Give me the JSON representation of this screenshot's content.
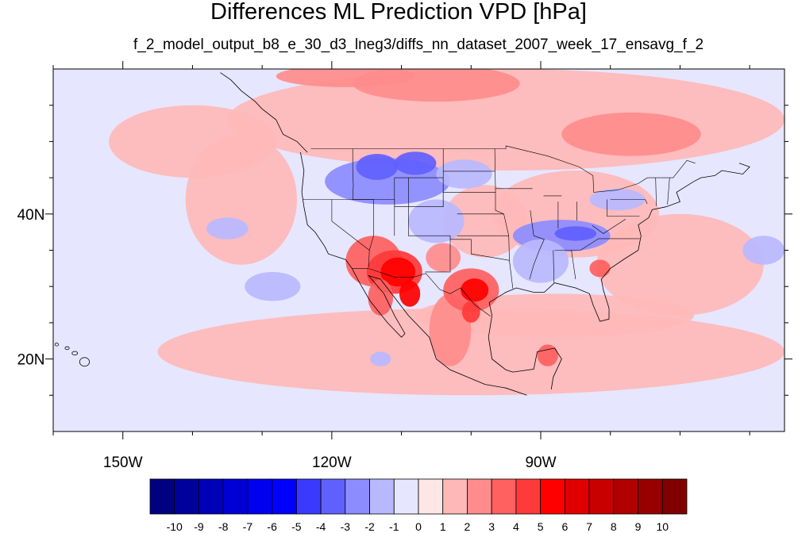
{
  "chart_data": {
    "type": "heatmap",
    "title": "Differences ML Prediction VPD [hPa]",
    "subtitle": "f_2_model_output_b8_e_30_d3_lneg3/diffs_nn_dataset_2007_week_17_ensavg_f_2",
    "lon_range": [
      -160,
      -55
    ],
    "lat_range": [
      10,
      60
    ],
    "x_ticks": [
      {
        "label": "150W",
        "value": -150
      },
      {
        "label": "120W",
        "value": -120
      },
      {
        "label": "90W",
        "value": -90
      }
    ],
    "y_ticks": [
      {
        "label": "40N",
        "value": 40
      },
      {
        "label": "20N",
        "value": 20
      }
    ],
    "colorbar": {
      "labels": [
        "-10",
        "-9",
        "-8",
        "-7",
        "-6",
        "-5",
        "-4",
        "-3",
        "-2",
        "-1",
        "0",
        "1",
        "2",
        "3",
        "4",
        "5",
        "6",
        "7",
        "8",
        "9",
        "10"
      ],
      "colors": [
        "#000080",
        "#00009c",
        "#0000b8",
        "#0000d4",
        "#0000ee",
        "#0000ff",
        "#3a3aff",
        "#6060ff",
        "#8c8cff",
        "#b8b8ff",
        "#e6e6ff",
        "#ffe6e6",
        "#ffb8b8",
        "#ff8c8c",
        "#ff6060",
        "#ff3a3a",
        "#ff0000",
        "#e00000",
        "#c80000",
        "#b00000",
        "#980000",
        "#800000"
      ]
    },
    "background_value": -1,
    "regions": [
      {
        "name": "pacific-light-positive-north",
        "value": 1,
        "lon": -140,
        "lat": 50,
        "rlon": 12,
        "rlat": 5
      },
      {
        "name": "canada-positive-band",
        "value": 1,
        "lon": -95,
        "lat": 53,
        "rlon": 40,
        "rlat": 7
      },
      {
        "name": "hudson-positive",
        "value": 2,
        "lon": -105,
        "lat": 58,
        "rlon": 12,
        "rlat": 2.5
      },
      {
        "name": "quebec-positive",
        "value": 2,
        "lon": -77,
        "lat": 51,
        "rlon": 10,
        "rlat": 3
      },
      {
        "name": "alaska-positive",
        "value": 2,
        "lon": -118,
        "lat": 59,
        "rlon": 10,
        "rlat": 1.5
      },
      {
        "name": "east-pacific-positive",
        "value": 1,
        "lon": -133,
        "lat": 42,
        "rlon": 8,
        "rlat": 9
      },
      {
        "name": "south-positive-belt",
        "value": 1,
        "lon": -100,
        "lat": 21,
        "rlon": 45,
        "rlat": 6
      },
      {
        "name": "gulf-positive",
        "value": 1,
        "lon": -88,
        "lat": 26,
        "rlon": 20,
        "rlat": 3
      },
      {
        "name": "atlantic-positive",
        "value": 1,
        "lon": -70,
        "lat": 33,
        "rlon": 12,
        "rlat": 7
      },
      {
        "name": "us-east-positive",
        "value": 1,
        "lon": -85,
        "lat": 40,
        "rlon": 12,
        "rlat": 6
      },
      {
        "name": "us-central-positive",
        "value": 1,
        "lon": -98,
        "lat": 39,
        "rlon": 6,
        "rlat": 5
      },
      {
        "name": "northwest-negative",
        "value": -3,
        "lon": -112,
        "lat": 44.5,
        "rlon": 9,
        "rlat": 3.2
      },
      {
        "name": "idaho-negative",
        "value": -4,
        "lon": -113.5,
        "lat": 46.5,
        "rlon": 3,
        "rlat": 1.8
      },
      {
        "name": "montana-negative",
        "value": -4,
        "lon": -108,
        "lat": 47,
        "rlon": 3,
        "rlat": 1.6
      },
      {
        "name": "colorado-negative",
        "value": -2,
        "lon": -105,
        "lat": 39,
        "rlon": 4,
        "rlat": 3
      },
      {
        "name": "dakota-negative",
        "value": -2,
        "lon": -101,
        "lat": 45.5,
        "rlon": 4,
        "rlat": 2
      },
      {
        "name": "kentucky-negative",
        "value": -3,
        "lon": -87,
        "lat": 37,
        "rlon": 7,
        "rlat": 2.2
      },
      {
        "name": "kentucky-core-negative",
        "value": -4,
        "lon": -85,
        "lat": 37.3,
        "rlon": 3,
        "rlat": 1
      },
      {
        "name": "mississippi-negative",
        "value": -2,
        "lon": -90,
        "lat": 33.5,
        "rlon": 4,
        "rlat": 3
      },
      {
        "name": "ny-negative",
        "value": -2,
        "lon": -79,
        "lat": 42,
        "rlon": 4,
        "rlat": 1.5
      },
      {
        "name": "pacific-negative-38n",
        "value": -2,
        "lon": -135,
        "lat": 38,
        "rlon": 3,
        "rlat": 1.5
      },
      {
        "name": "pacific-negative-30n",
        "value": -2,
        "lon": -128.5,
        "lat": 30,
        "rlon": 4,
        "rlat": 2
      },
      {
        "name": "atlantic-negative",
        "value": -2,
        "lon": -58,
        "lat": 35,
        "rlon": 3,
        "rlat": 2
      },
      {
        "name": "pacific-negative-south",
        "value": -2,
        "lon": -113,
        "lat": 20,
        "rlon": 1.5,
        "rlat": 1
      },
      {
        "name": "southwest-positive",
        "value": 3,
        "lon": -114,
        "lat": 33.5,
        "rlon": 4,
        "rlat": 3.5
      },
      {
        "name": "arizona-positive",
        "value": 4,
        "lon": -111,
        "lat": 32,
        "rlon": 4,
        "rlat": 3
      },
      {
        "name": "arizona-core",
        "value": 5,
        "lon": -110.5,
        "lat": 32,
        "rlon": 2.5,
        "rlat": 2
      },
      {
        "name": "sonora-positive",
        "value": 5,
        "lon": -108.8,
        "lat": 29,
        "rlon": 1.5,
        "rlat": 1.8
      },
      {
        "name": "baja-positive",
        "value": 3,
        "lon": -113,
        "lat": 28.5,
        "rlon": 1.8,
        "rlat": 2.5
      },
      {
        "name": "mexico-positive",
        "value": 2,
        "lon": -103,
        "lat": 24,
        "rlon": 3,
        "rlat": 5
      },
      {
        "name": "texas-positive",
        "value": 3,
        "lon": -100,
        "lat": 29.5,
        "rlon": 4,
        "rlat": 3
      },
      {
        "name": "texas-core",
        "value": 5,
        "lon": -99.5,
        "lat": 29.5,
        "rlon": 2,
        "rlat": 1.6
      },
      {
        "name": "coahuila-positive",
        "value": 4,
        "lon": -100,
        "lat": 26.5,
        "rlon": 1.3,
        "rlat": 1.5
      },
      {
        "name": "new-mexico-positive",
        "value": 2,
        "lon": -104,
        "lat": 34,
        "rlon": 2.5,
        "rlat": 2
      },
      {
        "name": "caribbean-positive",
        "value": 3,
        "lon": -89,
        "lat": 20.5,
        "rlon": 1.5,
        "rlat": 1.5
      },
      {
        "name": "carolina-positive",
        "value": 3,
        "lon": -81.5,
        "lat": 32.5,
        "rlon": 1.5,
        "rlat": 1.2
      }
    ]
  }
}
